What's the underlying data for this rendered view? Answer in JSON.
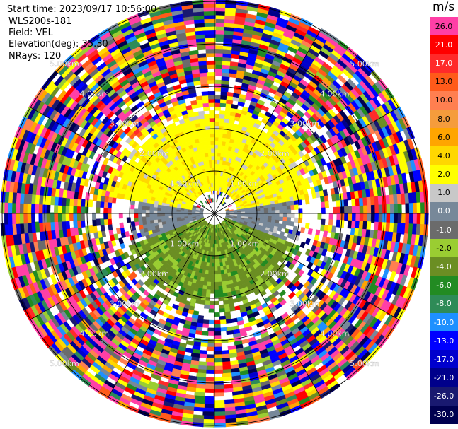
{
  "header": {
    "start_time": "Start time: 2023/09/17 10:56:00",
    "instrument": "WLS200s-181",
    "field": "Field: VEL",
    "elevation": "Elevation(deg): 35.30",
    "nrays": "NRays: 120"
  },
  "colorbar": {
    "unit": "m/s",
    "bins": [
      {
        "label": "26.0",
        "color": "#ff3fa6"
      },
      {
        "label": "21.0",
        "color": "#ff0000"
      },
      {
        "label": "17.0",
        "color": "#ff2a2a"
      },
      {
        "label": "13.0",
        "color": "#ff5a1a"
      },
      {
        "label": "10.0",
        "color": "#ff7f50"
      },
      {
        "label": "8.0",
        "color": "#f59c3c"
      },
      {
        "label": "6.0",
        "color": "#ffa500"
      },
      {
        "label": "4.0",
        "color": "#ffd700"
      },
      {
        "label": "2.0",
        "color": "#ffff00"
      },
      {
        "label": "1.0",
        "color": "#c8c8c8"
      },
      {
        "label": "0.0",
        "color": "#778899"
      },
      {
        "label": "-1.0",
        "color": "#6b6b6b"
      },
      {
        "label": "-2.0",
        "color": "#9acd32"
      },
      {
        "label": "-4.0",
        "color": "#6b8e23"
      },
      {
        "label": "-6.0",
        "color": "#228b22"
      },
      {
        "label": "-8.0",
        "color": "#2e8b57"
      },
      {
        "label": "-10.0",
        "color": "#1e90ff"
      },
      {
        "label": "-13.0",
        "color": "#0000ff"
      },
      {
        "label": "-17.0",
        "color": "#0000cd"
      },
      {
        "label": "-21.0",
        "color": "#00008b"
      },
      {
        "label": "-26.0",
        "color": "#191970"
      },
      {
        "label": "-30.0",
        "color": "#000050"
      }
    ]
  },
  "chart_data": {
    "type": "ppi",
    "field": "VEL",
    "units": "m/s",
    "elevation_deg": 35.3,
    "n_rays": 120,
    "rings_km": [
      1.0,
      2.0,
      3.0,
      4.0,
      5.0
    ],
    "range_labels": [
      "1.00km",
      "2.00km",
      "3.00km",
      "4.00km",
      "5.00km"
    ],
    "spokes_deg": [
      0,
      30,
      60,
      90,
      120,
      150,
      180,
      210,
      240,
      270,
      300,
      330
    ],
    "near_field_regions": [
      {
        "azimuth_range_deg": [
          280,
          80
        ],
        "range_km": [
          0.5,
          2.5
        ],
        "velocity_ms": 2.0,
        "note_color": "yellow"
      },
      {
        "azimuth_range_deg": [
          80,
          110
        ],
        "range_km": [
          0.3,
          1.8
        ],
        "velocity_ms": 0.0,
        "note_color": "gray"
      },
      {
        "azimuth_range_deg": [
          250,
          290
        ],
        "range_km": [
          0.3,
          1.8
        ],
        "velocity_ms": 0.0,
        "note_color": "gray"
      },
      {
        "azimuth_range_deg": [
          110,
          250
        ],
        "range_km": [
          0.3,
          2.2
        ],
        "velocity_ms": -3.0,
        "note_color": "olive"
      }
    ],
    "far_field": "noisy, mixed velocities beyond ~2.5 km"
  }
}
